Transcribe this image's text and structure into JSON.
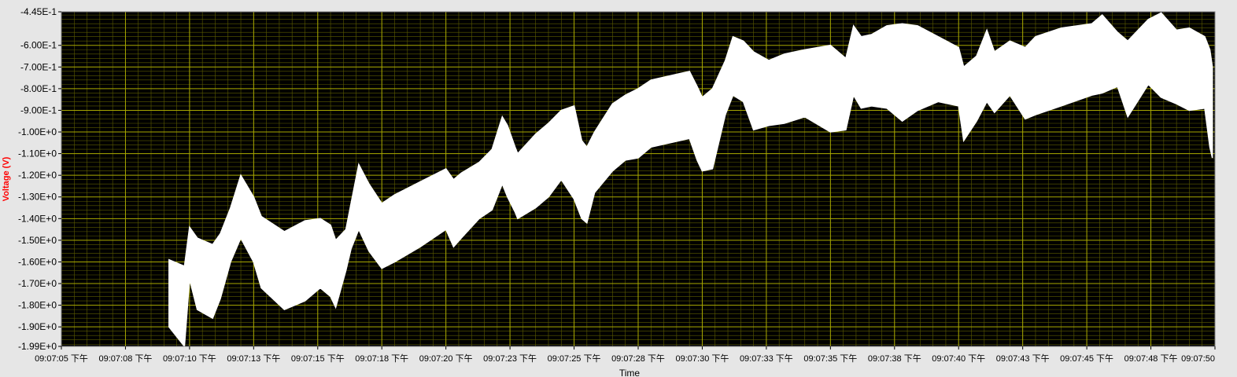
{
  "chart_data": {
    "type": "area",
    "title": "",
    "xlabel": "Time",
    "ylabel": "Voltage (V)",
    "ylim": [
      -1.99,
      -0.445
    ],
    "y_tick_values": [
      -0.445,
      -0.6,
      -0.7,
      -0.8,
      -0.9,
      -1.0,
      -1.1,
      -1.2,
      -1.3,
      -1.4,
      -1.5,
      -1.6,
      -1.7,
      -1.8,
      -1.9,
      -1.99
    ],
    "y_tick_labels": [
      "-4.45E-1",
      "-6.00E-1",
      "-7.00E-1",
      "-8.00E-1",
      "-9.00E-1",
      "-1.00E+0",
      "-1.10E+0",
      "-1.20E+0",
      "-1.30E+0",
      "-1.40E+0",
      "-1.50E+0",
      "-1.60E+0",
      "-1.70E+0",
      "-1.80E+0",
      "-1.90E+0",
      "-1.99E+0"
    ],
    "xlim": [
      "09:07:05",
      "09:07:50"
    ],
    "x_tick_values": [
      "09:07:05",
      "09:07:07.5",
      "09:07:10",
      "09:07:12.5",
      "09:07:15",
      "09:07:17.5",
      "09:07:20",
      "09:07:22.5",
      "09:07:25",
      "09:07:27.5",
      "09:07:30",
      "09:07:32.5",
      "09:07:35",
      "09:07:37.5",
      "09:07:40",
      "09:07:42.5",
      "09:07:45",
      "09:07:47.5",
      "09:07:50"
    ],
    "x_tick_labels": [
      "09:07:05 下午",
      "09:07:08 下午",
      "09:07:10 下午",
      "09:07:13 下午",
      "09:07:15 下午",
      "09:07:18 下午",
      "09:07:20 下午",
      "09:07:23 下午",
      "09:07:25 下午",
      "09:07:28 下午",
      "09:07:30 下午",
      "09:07:33 下午",
      "09:07:35 下午",
      "09:07:38 下午",
      "09:07:40 下午",
      "09:07:43 下午",
      "09:07:45 下午",
      "09:07:48 下午",
      "09:07:50"
    ],
    "grid": true,
    "colors": {
      "plot_background": "#000000",
      "major_grid": "#a8a800",
      "minor_grid": "#5c5c00",
      "signal": "#ffffff",
      "ylabel": "#ff0000",
      "frame": "#e6e6e6"
    },
    "series": [
      {
        "x": [
          "09:07:09.2",
          "09:07:09.8",
          "09:07:10.0",
          "09:07:10.3",
          "09:07:10.9",
          "09:07:11.2",
          "09:07:11.6",
          "09:07:12.0",
          "09:07:12.5",
          "09:07:12.8",
          "09:07:13.7",
          "09:07:14.5",
          "09:07:15.1",
          "09:07:15.5",
          "09:07:15.7",
          "09:07:16.1",
          "09:07:16.3",
          "09:07:16.6",
          "09:07:17.0",
          "09:07:17.5",
          "09:07:18.0",
          "09:07:19.0",
          "09:07:20.0",
          "09:07:20.3",
          "09:07:20.6",
          "09:07:21.3",
          "09:07:21.8",
          "09:07:22.2",
          "09:07:22.4",
          "09:07:22.7",
          "09:07:22.8",
          "09:07:23.5",
          "09:07:24.0",
          "09:07:24.5",
          "09:07:25.0",
          "09:07:25.3",
          "09:07:25.5",
          "09:07:25.8",
          "09:07:26.5",
          "09:07:27.0",
          "09:07:27.5",
          "09:07:28.0",
          "09:07:29.5",
          "09:07:29.8",
          "09:07:30.0",
          "09:07:30.4",
          "09:07:30.9",
          "09:07:31.2",
          "09:07:31.6",
          "09:07:32.0",
          "09:07:32.6",
          "09:07:33.2",
          "09:07:34.0",
          "09:07:35.0",
          "09:07:35.6",
          "09:07:35.9",
          "09:07:36.2",
          "09:07:36.6",
          "09:07:37.2",
          "09:07:37.8",
          "09:07:38.4",
          "09:07:39.2",
          "09:07:40.0",
          "09:07:40.2",
          "09:07:40.7",
          "09:07:41.1",
          "09:07:41.4",
          "09:07:42.0",
          "09:07:42.6",
          "09:07:43.0",
          "09:07:44.0",
          "09:07:45.2",
          "09:07:45.6",
          "09:07:46.2",
          "09:07:46.6",
          "09:07:47.4",
          "09:07:47.9",
          "09:07:48.5",
          "09:07:49.0",
          "09:07:49.6",
          "09:07:49.8",
          "09:07:49.9"
        ],
        "upper": [
          -1.59,
          -1.62,
          -1.44,
          -1.49,
          -1.52,
          -1.47,
          -1.35,
          -1.2,
          -1.3,
          -1.39,
          -1.46,
          -1.41,
          -1.4,
          -1.43,
          -1.5,
          -1.45,
          -1.33,
          -1.15,
          -1.24,
          -1.33,
          -1.29,
          -1.23,
          -1.17,
          -1.22,
          -1.19,
          -1.14,
          -1.08,
          -0.93,
          -0.97,
          -1.07,
          -1.1,
          -1.01,
          -0.96,
          -0.9,
          -0.88,
          -1.04,
          -1.07,
          -1.0,
          -0.87,
          -0.83,
          -0.8,
          -0.76,
          -0.72,
          -0.79,
          -0.84,
          -0.8,
          -0.67,
          -0.56,
          -0.58,
          -0.63,
          -0.67,
          -0.64,
          -0.62,
          -0.6,
          -0.66,
          -0.51,
          -0.56,
          -0.55,
          -0.51,
          -0.5,
          -0.51,
          -0.56,
          -0.61,
          -0.7,
          -0.65,
          -0.53,
          -0.63,
          -0.58,
          -0.61,
          -0.56,
          -0.52,
          -0.5,
          -0.46,
          -0.54,
          -0.58,
          -0.48,
          -0.45,
          -0.53,
          -0.52,
          -0.56,
          -0.62,
          -0.7
        ],
        "lower": [
          -1.9,
          -1.99,
          -1.68,
          -1.82,
          -1.86,
          -1.77,
          -1.6,
          -1.49,
          -1.6,
          -1.72,
          -1.82,
          -1.78,
          -1.72,
          -1.76,
          -1.81,
          -1.64,
          -1.54,
          -1.45,
          -1.55,
          -1.63,
          -1.6,
          -1.53,
          -1.45,
          -1.53,
          -1.49,
          -1.4,
          -1.36,
          -1.24,
          -1.3,
          -1.37,
          -1.4,
          -1.35,
          -1.3,
          -1.22,
          -1.31,
          -1.4,
          -1.42,
          -1.28,
          -1.18,
          -1.13,
          -1.12,
          -1.07,
          -1.03,
          -1.13,
          -1.18,
          -1.17,
          -0.92,
          -0.83,
          -0.86,
          -0.99,
          -0.97,
          -0.96,
          -0.93,
          -1.0,
          -0.99,
          -0.83,
          -0.89,
          -0.88,
          -0.89,
          -0.95,
          -0.9,
          -0.86,
          -0.88,
          -1.04,
          -0.95,
          -0.86,
          -0.91,
          -0.83,
          -0.94,
          -0.92,
          -0.88,
          -0.83,
          -0.82,
          -0.79,
          -0.93,
          -0.78,
          -0.84,
          -0.87,
          -0.9,
          -0.89,
          -1.07,
          -1.12
        ]
      }
    ]
  }
}
